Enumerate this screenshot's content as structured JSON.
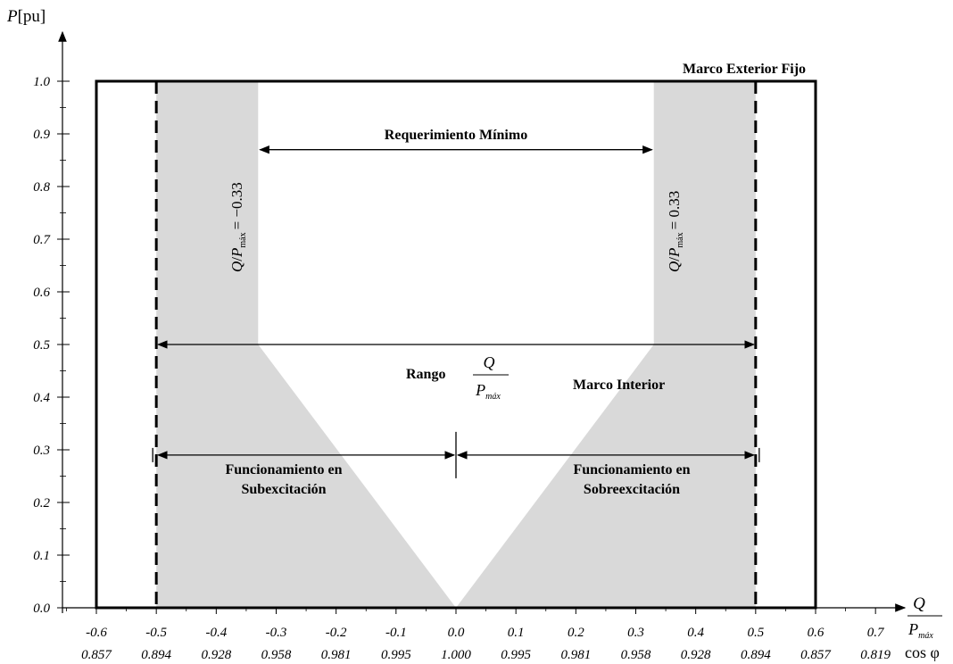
{
  "chart_data": {
    "type": "area",
    "title": "",
    "xlabel": {
      "numerator": "Q",
      "denominator": "P",
      "denominator_sub": "máx"
    },
    "secondary_xlabel": "cos φ",
    "ylabel": {
      "main": "P",
      "unit": "[pu]"
    },
    "xlim": [
      -0.6,
      0.7
    ],
    "ylim": [
      0.0,
      1.0
    ],
    "x_ticks": [
      {
        "value": -0.6,
        "label": "-0.6",
        "cos": "0.857"
      },
      {
        "value": -0.5,
        "label": "-0.5",
        "cos": "0.894"
      },
      {
        "value": -0.4,
        "label": "-0.4",
        "cos": "0.928"
      },
      {
        "value": -0.3,
        "label": "-0.3",
        "cos": "0.958"
      },
      {
        "value": -0.2,
        "label": "-0.2",
        "cos": "0.981"
      },
      {
        "value": -0.1,
        "label": "-0.1",
        "cos": "0.995"
      },
      {
        "value": 0.0,
        "label": "0.0",
        "cos": "1.000"
      },
      {
        "value": 0.1,
        "label": "0.1",
        "cos": "0.995"
      },
      {
        "value": 0.2,
        "label": "0.2",
        "cos": "0.981"
      },
      {
        "value": 0.3,
        "label": "0.3",
        "cos": "0.958"
      },
      {
        "value": 0.4,
        "label": "0.4",
        "cos": "0.928"
      },
      {
        "value": 0.5,
        "label": "0.5",
        "cos": "0.894"
      },
      {
        "value": 0.6,
        "label": "0.6",
        "cos": "0.857"
      },
      {
        "value": 0.7,
        "label": "0.7",
        "cos": "0.819"
      }
    ],
    "y_ticks": [
      {
        "value": 0.0,
        "label": "0.0"
      },
      {
        "value": 0.1,
        "label": "0.1"
      },
      {
        "value": 0.2,
        "label": "0.2"
      },
      {
        "value": 0.3,
        "label": "0.3"
      },
      {
        "value": 0.4,
        "label": "0.4"
      },
      {
        "value": 0.5,
        "label": "0.5"
      },
      {
        "value": 0.6,
        "label": "0.6"
      },
      {
        "value": 0.7,
        "label": "0.7"
      },
      {
        "value": 0.8,
        "label": "0.8"
      },
      {
        "value": 0.9,
        "label": "0.9"
      },
      {
        "value": 1.0,
        "label": "1.0"
      }
    ],
    "grid": false,
    "regions": {
      "fill_color": "#d9d9d9",
      "left_shaded": [
        [
          -0.5,
          0.0
        ],
        [
          -0.5,
          1.0
        ],
        [
          -0.33,
          1.0
        ],
        [
          -0.33,
          0.5
        ],
        [
          0.0,
          0.0
        ]
      ],
      "right_shaded": [
        [
          0.5,
          0.0
        ],
        [
          0.5,
          1.0
        ],
        [
          0.33,
          1.0
        ],
        [
          0.33,
          0.5
        ],
        [
          0.0,
          0.0
        ]
      ]
    },
    "outer_frame": {
      "label": "Marco Exterior Fijo",
      "x": [
        -0.6,
        0.6
      ],
      "y": [
        0.0,
        1.0
      ]
    },
    "inner_frame": {
      "label": "Marco Interior",
      "x": [
        -0.5,
        0.5
      ],
      "y": [
        0.0,
        1.0
      ],
      "style": "dashed"
    },
    "annotations": {
      "min_requirement": {
        "label": "Requerimiento Mínimo",
        "x": [
          -0.33,
          0.33
        ],
        "y": 0.87
      },
      "range": {
        "label": "Rango",
        "frac_num": "Q",
        "frac_den": "P",
        "frac_den_sub": "máx",
        "x": [
          -0.5,
          0.5
        ],
        "y": 0.5
      },
      "under_excitation": {
        "line1": "Funcionamiento en",
        "line2": "Subexcitación",
        "x": [
          -0.5,
          0.0
        ],
        "y": 0.29
      },
      "over_excitation": {
        "line1": "Funcionamiento en",
        "line2": "Sobreexcitación",
        "x": [
          0.0,
          0.5
        ],
        "y": 0.29
      },
      "left_boundary": {
        "label": "= −0.33",
        "x": -0.33
      },
      "right_boundary": {
        "label": "= 0.33",
        "x": 0.33
      },
      "boundary_symbol": {
        "q": "Q",
        "slash": "/",
        "p": "P",
        "sub": "máx"
      }
    },
    "colors": {
      "shade": "#d9d9d9",
      "line": "#000000"
    }
  }
}
